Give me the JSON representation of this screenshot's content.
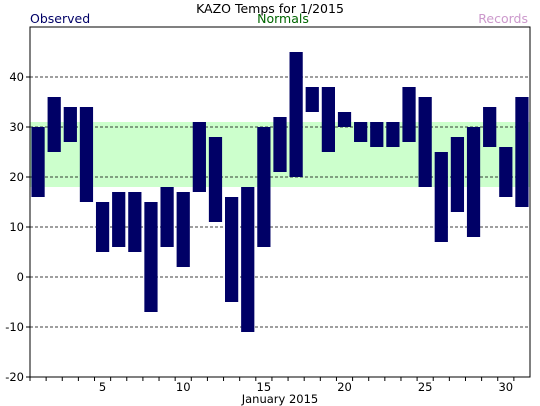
{
  "chart_data": {
    "type": "bar",
    "title": "KAZO Temps for 1/2015",
    "xlabel": "January 2015",
    "ylabel": "",
    "legend": [
      {
        "label": "Observed",
        "color": "#000066"
      },
      {
        "label": "Normals",
        "color": "#006600"
      },
      {
        "label": "Records",
        "color": "#cc99cc"
      }
    ],
    "colors": {
      "bar": "#000066",
      "normals_band": "#ccffcc",
      "grid": "#000000",
      "plot_bg": "#ffffff"
    },
    "xlim": [
      0.5,
      31.5
    ],
    "ylim": [
      -20,
      50
    ],
    "yticks": [
      -20,
      -10,
      0,
      10,
      20,
      30,
      40
    ],
    "xticks": [
      5,
      10,
      15,
      20,
      25,
      30
    ],
    "grid": "dashed horizontal",
    "normals_band": {
      "low": 18,
      "high": 31
    },
    "series": [
      {
        "name": "Observed",
        "days": [
          1,
          2,
          3,
          4,
          5,
          6,
          7,
          8,
          9,
          10,
          11,
          12,
          13,
          14,
          15,
          16,
          17,
          18,
          19,
          20,
          21,
          22,
          23,
          24,
          25,
          26,
          27,
          28,
          29,
          30,
          31
        ],
        "high": [
          30,
          36,
          34,
          34,
          15,
          17,
          17,
          15,
          18,
          17,
          31,
          28,
          16,
          18,
          30,
          32,
          45,
          38,
          38,
          33,
          31,
          31,
          31,
          38,
          36,
          25,
          28,
          30,
          34,
          26,
          36
        ],
        "low": [
          16,
          25,
          27,
          15,
          5,
          6,
          5,
          -7,
          6,
          2,
          17,
          11,
          -5,
          -11,
          6,
          21,
          20,
          33,
          25,
          30,
          27,
          26,
          26,
          27,
          18,
          7,
          13,
          8,
          26,
          16,
          14
        ]
      }
    ]
  }
}
